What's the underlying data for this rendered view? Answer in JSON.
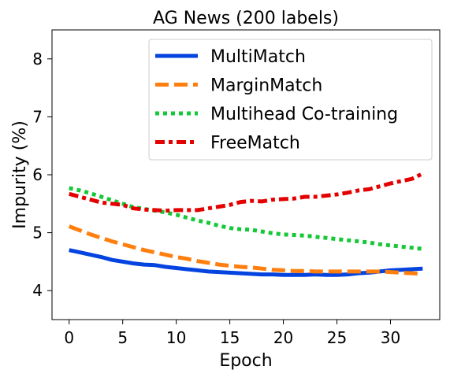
{
  "chart_data": {
    "type": "line",
    "title": "AG News (200 labels)",
    "xlabel": "Epoch",
    "ylabel": "Impurity (%)",
    "xlim": [
      -1.6,
      34.6
    ],
    "ylim": [
      3.5,
      8.5
    ],
    "xticks": [
      0,
      5,
      10,
      15,
      20,
      25,
      30
    ],
    "yticks": [
      4,
      5,
      6,
      7,
      8
    ],
    "grid": false,
    "legend_position": "top-right",
    "x": [
      0,
      1,
      2,
      3,
      4,
      5,
      6,
      7,
      8,
      9,
      10,
      11,
      12,
      13,
      14,
      15,
      16,
      17,
      18,
      19,
      20,
      21,
      22,
      23,
      24,
      25,
      26,
      27,
      28,
      29,
      30,
      31,
      32,
      33
    ],
    "series": [
      {
        "name": "MultiMatch",
        "color": "#0343df",
        "dash": "solid",
        "values": [
          4.7,
          4.66,
          4.62,
          4.58,
          4.53,
          4.5,
          4.47,
          4.45,
          4.44,
          4.41,
          4.39,
          4.37,
          4.35,
          4.33,
          4.32,
          4.31,
          4.3,
          4.29,
          4.28,
          4.28,
          4.27,
          4.27,
          4.27,
          4.28,
          4.27,
          4.27,
          4.28,
          4.3,
          4.31,
          4.33,
          4.35,
          4.36,
          4.37,
          4.38
        ]
      },
      {
        "name": "MarginMatch",
        "color": "#ff7f0e",
        "dash": "dashed",
        "values": [
          5.11,
          5.04,
          4.97,
          4.91,
          4.85,
          4.8,
          4.75,
          4.7,
          4.66,
          4.62,
          4.58,
          4.55,
          4.51,
          4.48,
          4.45,
          4.43,
          4.41,
          4.4,
          4.38,
          4.36,
          4.35,
          4.34,
          4.34,
          4.33,
          4.33,
          4.33,
          4.33,
          4.33,
          4.33,
          4.33,
          4.32,
          4.31,
          4.3,
          4.29
        ]
      },
      {
        "name": "Multihead Co-training",
        "color": "#15c837",
        "dash": "dotted",
        "values": [
          5.77,
          5.73,
          5.68,
          5.62,
          5.56,
          5.5,
          5.44,
          5.41,
          5.38,
          5.35,
          5.31,
          5.26,
          5.21,
          5.17,
          5.12,
          5.08,
          5.06,
          5.05,
          5.02,
          4.99,
          4.97,
          4.96,
          4.95,
          4.93,
          4.91,
          4.89,
          4.87,
          4.85,
          4.83,
          4.8,
          4.78,
          4.76,
          4.74,
          4.72
        ]
      },
      {
        "name": "FreeMatch",
        "color": "#e50000",
        "dash": "dashdot",
        "values": [
          5.67,
          5.62,
          5.57,
          5.52,
          5.5,
          5.48,
          5.42,
          5.4,
          5.39,
          5.38,
          5.39,
          5.39,
          5.39,
          5.42,
          5.45,
          5.48,
          5.53,
          5.55,
          5.54,
          5.57,
          5.58,
          5.59,
          5.62,
          5.62,
          5.64,
          5.66,
          5.69,
          5.73,
          5.75,
          5.8,
          5.85,
          5.89,
          5.93,
          6.02
        ]
      }
    ]
  }
}
